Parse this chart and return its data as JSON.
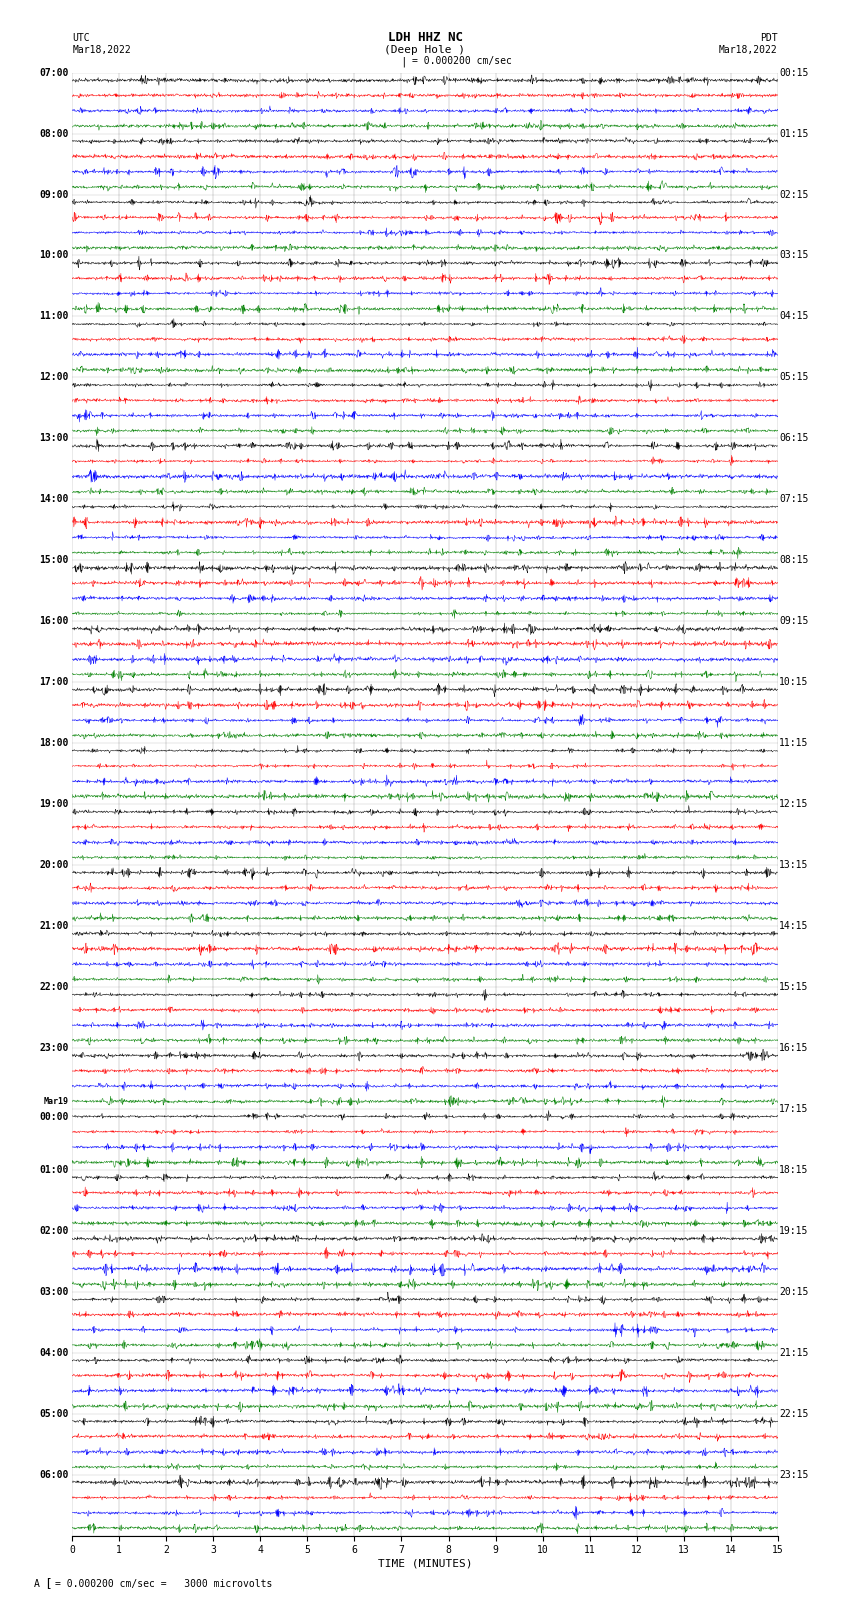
{
  "title_line1": "LDH HHZ NC",
  "title_line2": "(Deep Hole )",
  "title_scale": "= 0.000200 cm/sec",
  "label_left_top": "UTC",
  "label_left_date": "Mar18,2022",
  "label_right_top": "PDT",
  "label_right_date": "Mar18,2022",
  "xlabel": "TIME (MINUTES)",
  "footer": "= 0.000200 cm/sec =   3000 microvolts",
  "colors": [
    "black",
    "red",
    "blue",
    "green"
  ],
  "num_rows": 24,
  "traces_per_row": 4,
  "minutes": 15,
  "utc_times": [
    "07:00",
    "08:00",
    "09:00",
    "10:00",
    "11:00",
    "12:00",
    "13:00",
    "14:00",
    "15:00",
    "16:00",
    "17:00",
    "18:00",
    "19:00",
    "20:00",
    "21:00",
    "22:00",
    "23:00",
    "Mar19\n00:00",
    "01:00",
    "02:00",
    "03:00",
    "04:00",
    "05:00",
    "06:00"
  ],
  "pdt_times": [
    "00:15",
    "01:15",
    "02:15",
    "03:15",
    "04:15",
    "05:15",
    "06:15",
    "07:15",
    "08:15",
    "09:15",
    "10:15",
    "11:15",
    "12:15",
    "13:15",
    "14:15",
    "15:15",
    "16:15",
    "17:15",
    "18:15",
    "19:15",
    "20:15",
    "21:15",
    "22:15",
    "23:15"
  ],
  "background_color": "#ffffff",
  "seed": 42
}
